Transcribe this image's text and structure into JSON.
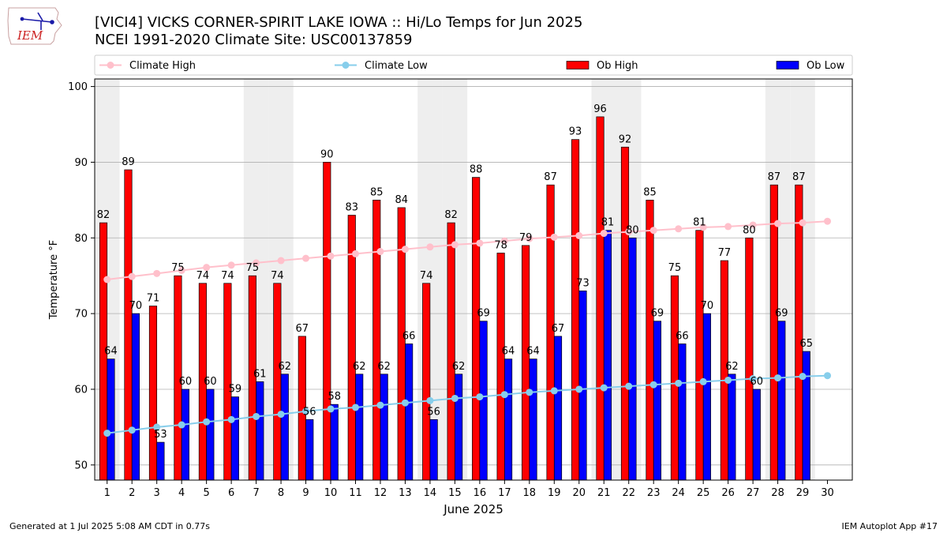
{
  "header": {
    "title": "[VICI4] VICKS CORNER-SPIRIT LAKE IOWA :: Hi/Lo Temps for Jun 2025",
    "subtitle": "NCEI 1991-2020 Climate Site: USC00137859",
    "logo_text": "IEM"
  },
  "footer": {
    "left": "Generated at 1 Jul 2025 5:08 AM CDT in 0.77s",
    "right": "IEM Autoplot App #17"
  },
  "colors": {
    "ob_high": "#ff0000",
    "ob_low": "#0000ff",
    "climate_high": "#ffc0cb",
    "climate_low": "#87ceeb",
    "weekend_shade": "#eeeeee",
    "grid": "#b0b0b0"
  },
  "chart_data": {
    "type": "bar",
    "xlabel": "June 2025",
    "ylabel": "Temperature °F",
    "ylim": [
      48,
      101
    ],
    "yticks": [
      50,
      60,
      70,
      80,
      90,
      100
    ],
    "grid": "horizontal",
    "legend_position": "top",
    "x": [
      1,
      2,
      3,
      4,
      5,
      6,
      7,
      8,
      9,
      10,
      11,
      12,
      13,
      14,
      15,
      16,
      17,
      18,
      19,
      20,
      21,
      22,
      23,
      24,
      25,
      26,
      27,
      28,
      29,
      30
    ],
    "weekend_days": [
      1,
      7,
      8,
      14,
      15,
      21,
      22,
      28,
      29
    ],
    "series": [
      {
        "name": "Climate High",
        "kind": "line",
        "values": [
          74.5,
          74.9,
          75.3,
          75.7,
          76.1,
          76.4,
          76.7,
          77.0,
          77.3,
          77.6,
          77.9,
          78.2,
          78.5,
          78.8,
          79.1,
          79.3,
          79.6,
          79.9,
          80.1,
          80.3,
          80.6,
          80.8,
          81.0,
          81.2,
          81.4,
          81.5,
          81.7,
          81.9,
          82.0,
          82.2
        ]
      },
      {
        "name": "Climate Low",
        "kind": "line",
        "values": [
          54.2,
          54.6,
          55.0,
          55.3,
          55.7,
          56.0,
          56.4,
          56.7,
          57.1,
          57.4,
          57.6,
          57.9,
          58.2,
          58.5,
          58.8,
          59.0,
          59.3,
          59.6,
          59.8,
          60.0,
          60.2,
          60.4,
          60.6,
          60.8,
          61.0,
          61.2,
          61.4,
          61.5,
          61.7,
          61.8
        ]
      },
      {
        "name": "Ob High",
        "kind": "bar",
        "values": [
          82,
          89,
          71,
          75,
          74,
          74,
          75,
          74,
          67,
          90,
          83,
          85,
          84,
          74,
          82,
          88,
          78,
          79,
          87,
          93,
          96,
          92,
          85,
          75,
          81,
          77,
          80,
          87,
          87,
          null
        ]
      },
      {
        "name": "Ob Low",
        "kind": "bar",
        "values": [
          64,
          70,
          53,
          60,
          60,
          59,
          61,
          62,
          56,
          58,
          62,
          62,
          66,
          56,
          62,
          69,
          64,
          64,
          67,
          73,
          81,
          80,
          69,
          66,
          70,
          62,
          60,
          69,
          65,
          null
        ]
      }
    ]
  }
}
